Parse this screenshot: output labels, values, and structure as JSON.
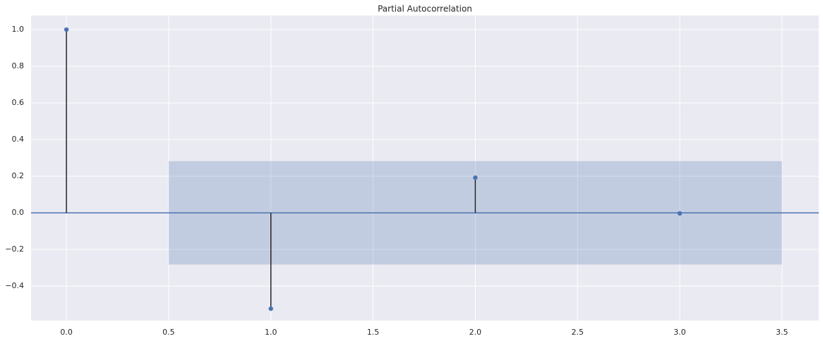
{
  "chart_data": {
    "type": "stem",
    "title": "Partial Autocorrelation",
    "x": [
      0,
      1,
      2,
      3
    ],
    "values": [
      1.0,
      -0.523,
      0.192,
      -0.003
    ],
    "color": "#4c72b0",
    "stem_color": "#262626",
    "confint": {
      "x": [
        0.5,
        3.5
      ],
      "lower": -0.282,
      "upper": 0.282,
      "color": "#4c72b0"
    },
    "xlim": [
      -0.173,
      3.68
    ],
    "ylim": [
      -0.588,
      1.077
    ],
    "xticks": [
      {
        "value": 0,
        "label": "0.0"
      },
      {
        "value": 0.5,
        "label": "0.5"
      },
      {
        "value": 1,
        "label": "1.0"
      },
      {
        "value": 1.5,
        "label": "1.5"
      },
      {
        "value": 2,
        "label": "2.0"
      },
      {
        "value": 2.5,
        "label": "2.5"
      },
      {
        "value": 3,
        "label": "3.0"
      },
      {
        "value": 3.5,
        "label": "3.5"
      }
    ],
    "yticks": [
      {
        "value": -0.4,
        "label": "−0.4"
      },
      {
        "value": -0.2,
        "label": "−0.2"
      },
      {
        "value": 0,
        "label": "0.0"
      },
      {
        "value": 0.2,
        "label": "0.2"
      },
      {
        "value": 0.4,
        "label": "0.4"
      },
      {
        "value": 0.6,
        "label": "0.6"
      },
      {
        "value": 0.8,
        "label": "0.8"
      },
      {
        "value": 1,
        "label": "1.0"
      }
    ],
    "grid": true
  }
}
